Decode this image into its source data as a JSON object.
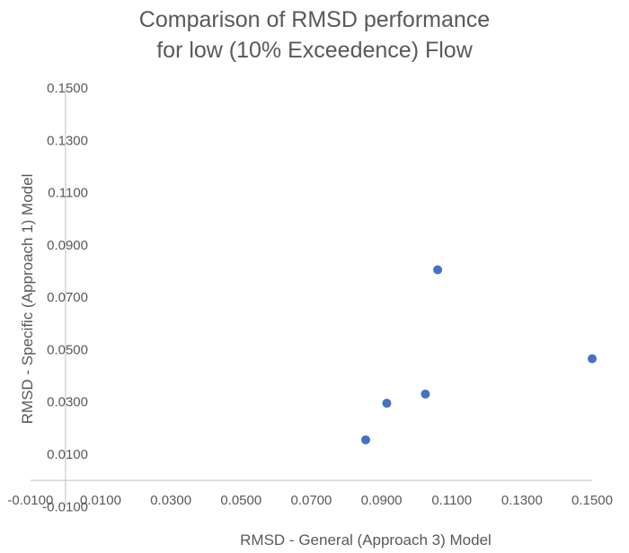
{
  "chart_data": {
    "type": "scatter",
    "title_lines": [
      "Comparison of RMSD performance",
      "for low (10% Exceedence) Flow"
    ],
    "xlabel": "RMSD - General (Approach 3) Model",
    "ylabel": "RMSD - Specific (Approach 1)  Model",
    "xlim": [
      -0.01,
      0.15
    ],
    "ylim": [
      -0.01,
      0.15
    ],
    "x_ticks": [
      "-0.0100",
      "0.0100",
      "0.0300",
      "0.0500",
      "0.0700",
      "0.0900",
      "0.1100",
      "0.1300",
      "0.1500"
    ],
    "y_ticks": [
      "-0.0100",
      "0.0100",
      "0.0300",
      "0.0500",
      "0.0700",
      "0.0900",
      "0.1100",
      "0.1300",
      "0.1500"
    ],
    "grid": false,
    "series": [
      {
        "color": "#4472c4",
        "points": [
          {
            "x": 0.0855,
            "y": 0.0155
          },
          {
            "x": 0.0915,
            "y": 0.0295
          },
          {
            "x": 0.1025,
            "y": 0.033
          },
          {
            "x": 0.106,
            "y": 0.0805
          },
          {
            "x": 0.15,
            "y": 0.0465
          }
        ]
      }
    ]
  },
  "colors": {
    "text": "#595959",
    "axis": "#bfbfbf",
    "marker": "#4472c4"
  }
}
